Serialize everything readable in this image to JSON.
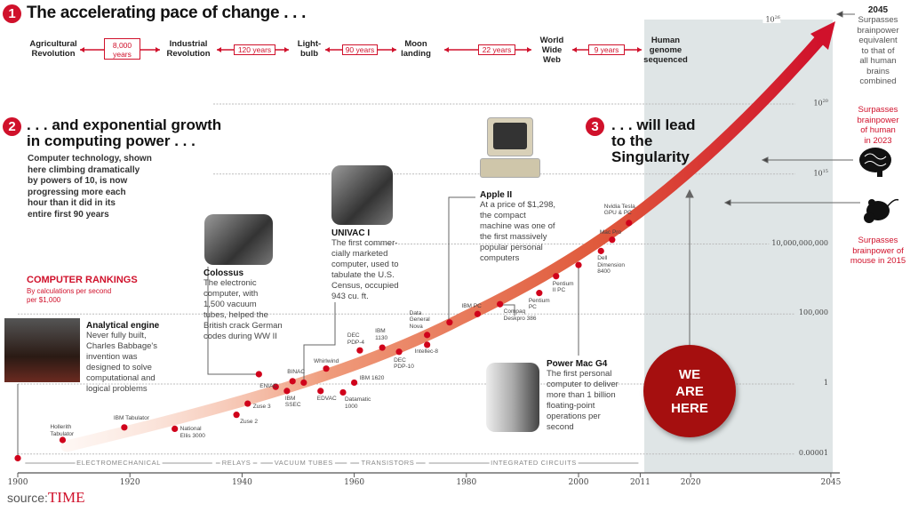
{
  "section1": {
    "number": "1",
    "title": "The accelerating pace of change . . .",
    "events": [
      "Agricultural\nRevolution",
      "Industrial\nRevolution",
      "Light-\nbulb",
      "Moon\nlanding",
      "World\nWide\nWeb",
      "Human\ngenome\nsequenced"
    ],
    "intervals": [
      "8,000\nyears",
      "120 years",
      "90 years",
      "22 years",
      "9 years"
    ]
  },
  "section2": {
    "number": "2",
    "title": ". . . and exponential growth\nin computing power . . .",
    "body": "Computer technology, shown\nhere climbing dramatically\nby powers of 10, is now\nprogressing more each\nhour than it did in its\nentire first 90 years"
  },
  "section3": {
    "number": "3",
    "title": ". . . will lead\nto the\nSingularity"
  },
  "rankings": {
    "title": "COMPUTER RANKINGS",
    "subtitle": "By calculations per second\nper $1,000"
  },
  "callouts": {
    "analytical": {
      "title": "Analytical engine",
      "body": "Never fully built,\nCharles Babbage's\ninvention was\ndesigned to solve\ncomputational and\nlogical problems"
    },
    "colossus": {
      "title": "Colossus",
      "body": "The electronic\ncomputer, with\n1,500 vacuum\ntubes, helped the\nBritish crack German\ncodes during WW II"
    },
    "univac": {
      "title": "UNIVAC I",
      "body": "The first commer-\ncially marketed\ncomputer, used to\ntabulate the U.S.\nCensus, occupied\n943 cu. ft."
    },
    "apple": {
      "title": "Apple II",
      "body": "At a price of $1,298,\nthe compact\nmachine was one of\nthe first massively\npopular personal\ncomputers"
    },
    "powermac": {
      "title": "Power Mac G4",
      "body": "The first personal\ncomputer to deliver\nmore than 1 billion\nfloating-point\noperations per\nsecond"
    }
  },
  "notes": {
    "y2045": {
      "year": "2045",
      "text": "Surpasses\nbrainpower\nequivalent\nto that of\nall human\nbrains\ncombined"
    },
    "human": "Surpasses\nbrainpower\nof human\nin 2023",
    "mouse": "Surpasses\nbrainpower of\nmouse in 2015",
    "we_are_here": "WE\nARE\nHERE"
  },
  "source": {
    "prefix": "source:",
    "brand": "TIME"
  },
  "colors": {
    "accent": "#d0112b",
    "dot": "#d0021b",
    "future_shade": "#dfe5e6",
    "we_are_here": "#a50f0f"
  },
  "icons": [
    "brain-icon",
    "mouse-icon"
  ],
  "chart_data": {
    "type": "scatter",
    "title": "",
    "ylabel": "By calculations per second per $1,000",
    "yscale": "log",
    "xlim": [
      1900,
      2045
    ],
    "ylim": [
      1e-05,
      1e+26
    ],
    "x_ticks": [
      "1900",
      "1920",
      "1940",
      "1960",
      "1980",
      "2000",
      "2011",
      "2020",
      "2045"
    ],
    "y_ticks": [
      {
        "label": "0.00001",
        "value": 1e-05
      },
      {
        "label": "1",
        "value": 1
      },
      {
        "label": "100,000",
        "value": 100000.0
      },
      {
        "label": "10,000,000,000",
        "value": 10000000000.0
      },
      {
        "label": "10",
        "exp": "15",
        "value": 1000000000000000.0
      },
      {
        "label": "10",
        "exp": "20",
        "value": 1e+20
      },
      {
        "label": "10",
        "exp": "26",
        "value": 1e+26
      }
    ],
    "eras": [
      "ELECTROMECHANICAL",
      "RELAYS",
      "VACUUM TUBES",
      "TRANSISTORS",
      "INTEGRATED CIRCUITS"
    ],
    "grid": true,
    "future_shaded_from": 2011,
    "points": [
      {
        "label": "",
        "year": 1900,
        "log10": -5.3
      },
      {
        "label": "Hollerith\nTabulator",
        "year": 1908,
        "log10": -4.0
      },
      {
        "label": "IBM Tabulator",
        "year": 1919,
        "log10": -3.1
      },
      {
        "label": "National\nEllis 3000",
        "year": 1928,
        "log10": -3.2
      },
      {
        "label": "Zuse 2",
        "year": 1939,
        "log10": -2.2
      },
      {
        "label": "Zuse 3",
        "year": 1941,
        "log10": -1.4
      },
      {
        "label": "",
        "year": 1943,
        "log10": 0.7
      },
      {
        "label": "ENIAC",
        "year": 1946,
        "log10": -0.2
      },
      {
        "label": "IBM\nSSEC",
        "year": 1948,
        "log10": -0.5
      },
      {
        "label": "BINAC",
        "year": 1949,
        "log10": 0.2
      },
      {
        "label": "",
        "year": 1951,
        "log10": 0.1
      },
      {
        "label": "EDVAC",
        "year": 1954,
        "log10": -0.5
      },
      {
        "label": "Whirlwind",
        "year": 1955,
        "log10": 1.1
      },
      {
        "label": "Datamatic\n1000",
        "year": 1958,
        "log10": -0.6
      },
      {
        "label": "IBM 1620",
        "year": 1960,
        "log10": 0.1
      },
      {
        "label": "DEC\nPDP-4",
        "year": 1961,
        "log10": 2.4
      },
      {
        "label": "IBM\n1130",
        "year": 1965,
        "log10": 2.6
      },
      {
        "label": "DEC\nPDP-10",
        "year": 1968,
        "log10": 2.3
      },
      {
        "label": "Data\nGeneral\nNova",
        "year": 1973,
        "log10": 3.5
      },
      {
        "label": "Intellec-8",
        "year": 1973,
        "log10": 2.8
      },
      {
        "label": "",
        "year": 1977,
        "log10": 4.4
      },
      {
        "label": "IBM PC",
        "year": 1982,
        "log10": 5.0
      },
      {
        "label": "Compaq\nDeskpro 386",
        "year": 1986,
        "log10": 5.7
      },
      {
        "label": "Pentium\nPC",
        "year": 1993,
        "log10": 6.5
      },
      {
        "label": "Pentium\nII PC",
        "year": 1996,
        "log10": 7.7
      },
      {
        "label": "",
        "year": 2000,
        "log10": 8.5
      },
      {
        "label": "Dell\nDimension\n8400",
        "year": 2004,
        "log10": 9.5
      },
      {
        "label": "Mac Pro",
        "year": 2006,
        "log10": 10.3
      },
      {
        "label": "Nvidia Tesla\nGPU & PC",
        "year": 2009,
        "log10": 11.5
      }
    ]
  }
}
